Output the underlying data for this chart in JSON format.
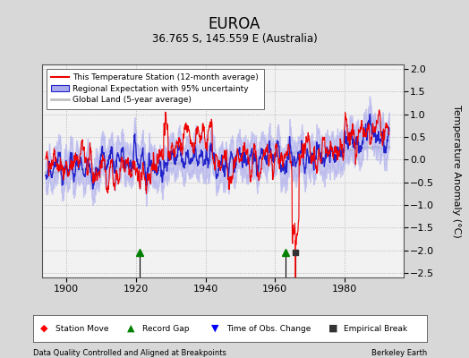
{
  "title": "EUROA",
  "subtitle": "36.765 S, 145.559 E (Australia)",
  "xlabel_left": "Data Quality Controlled and Aligned at Breakpoints",
  "xlabel_right": "Berkeley Earth",
  "ylabel": "Temperature Anomaly (°C)",
  "xlim": [
    1893,
    1997
  ],
  "ylim": [
    -2.6,
    2.1
  ],
  "yticks": [
    -2.5,
    -2,
    -1.5,
    -1,
    -0.5,
    0,
    0.5,
    1,
    1.5,
    2
  ],
  "xticks": [
    1900,
    1920,
    1940,
    1960,
    1980
  ],
  "bg_color": "#d8d8d8",
  "plot_bg_color": "#f2f2f2",
  "seed": 42,
  "record_gaps": [
    1921,
    1963
  ],
  "empirical_breaks": [
    1966
  ],
  "global_land_color": "#c0c0c0",
  "regional_fill_color": "#aaaaee",
  "regional_line_color": "#2222cc",
  "station_line_color": "#ee0000"
}
